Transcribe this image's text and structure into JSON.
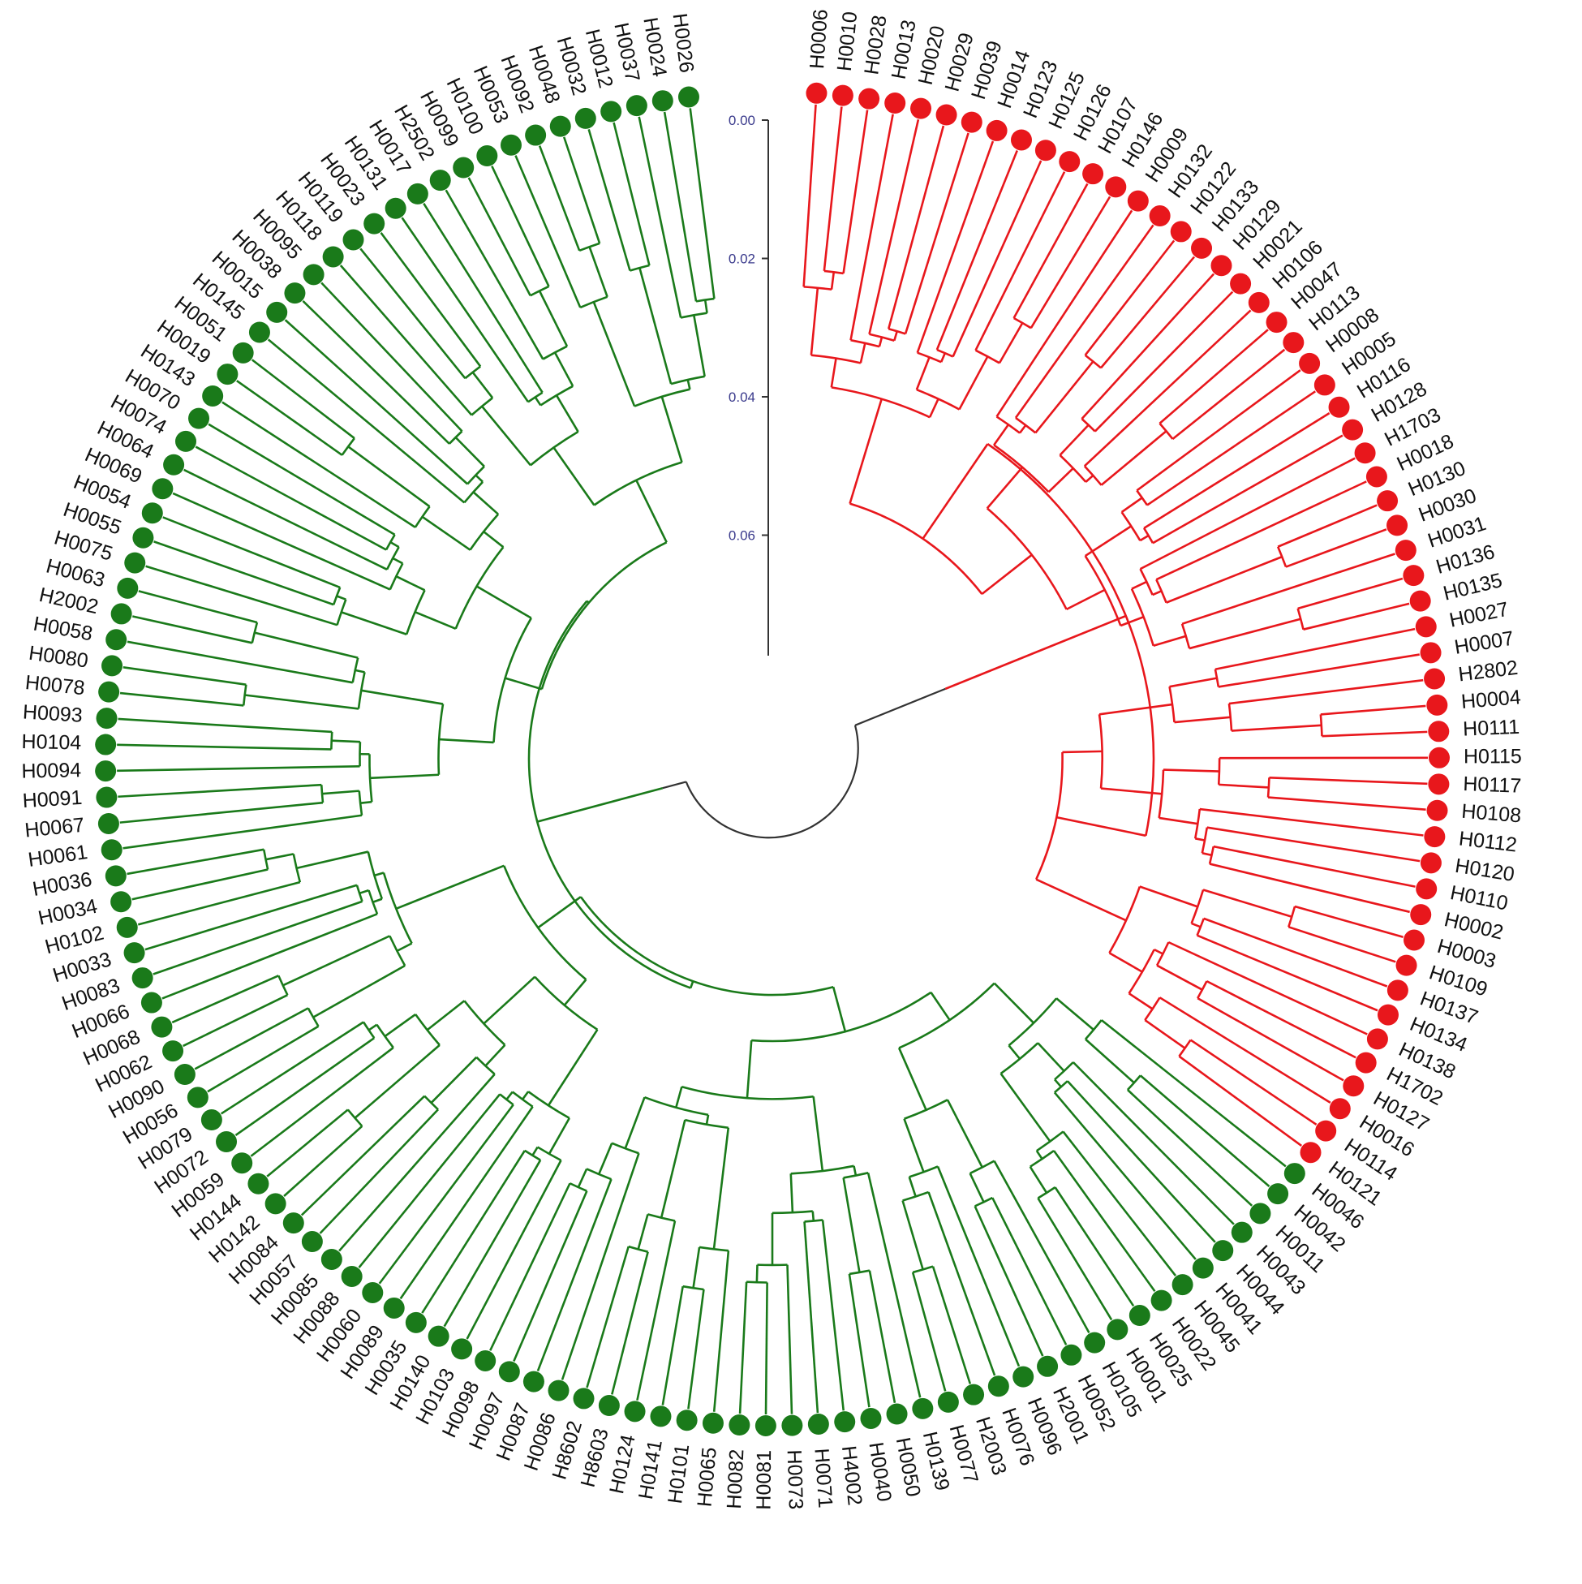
{
  "colors": {
    "group_red": "#e8171c",
    "group_green": "#1a7a1a",
    "axis": "#333333",
    "scale_text": "#3a3a8c",
    "root_arc": "#333333"
  },
  "scale_bar": {
    "ticks": [
      "0.00",
      "0.02",
      "0.04",
      "0.06"
    ]
  },
  "leaves": [
    {
      "id": "H0006",
      "group": "red"
    },
    {
      "id": "H0010",
      "group": "red"
    },
    {
      "id": "H0028",
      "group": "red"
    },
    {
      "id": "H0013",
      "group": "red"
    },
    {
      "id": "H0020",
      "group": "red"
    },
    {
      "id": "H0029",
      "group": "red"
    },
    {
      "id": "H0039",
      "group": "red"
    },
    {
      "id": "H0014",
      "group": "red"
    },
    {
      "id": "H0123",
      "group": "red"
    },
    {
      "id": "H0125",
      "group": "red"
    },
    {
      "id": "H0126",
      "group": "red"
    },
    {
      "id": "H0107",
      "group": "red"
    },
    {
      "id": "H0146",
      "group": "red"
    },
    {
      "id": "H0009",
      "group": "red"
    },
    {
      "id": "H0132",
      "group": "red"
    },
    {
      "id": "H0122",
      "group": "red"
    },
    {
      "id": "H0133",
      "group": "red"
    },
    {
      "id": "H0129",
      "group": "red"
    },
    {
      "id": "H0021",
      "group": "red"
    },
    {
      "id": "H0106",
      "group": "red"
    },
    {
      "id": "H0047",
      "group": "red"
    },
    {
      "id": "H0113",
      "group": "red"
    },
    {
      "id": "H0008",
      "group": "red"
    },
    {
      "id": "H0005",
      "group": "red"
    },
    {
      "id": "H0116",
      "group": "red"
    },
    {
      "id": "H0128",
      "group": "red"
    },
    {
      "id": "H1703",
      "group": "red"
    },
    {
      "id": "H0018",
      "group": "red"
    },
    {
      "id": "H0130",
      "group": "red"
    },
    {
      "id": "H0030",
      "group": "red"
    },
    {
      "id": "H0031",
      "group": "red"
    },
    {
      "id": "H0136",
      "group": "red"
    },
    {
      "id": "H0135",
      "group": "red"
    },
    {
      "id": "H0027",
      "group": "red"
    },
    {
      "id": "H0007",
      "group": "red"
    },
    {
      "id": "H2802",
      "group": "red"
    },
    {
      "id": "H0004",
      "group": "red"
    },
    {
      "id": "H0111",
      "group": "red"
    },
    {
      "id": "H0115",
      "group": "red"
    },
    {
      "id": "H0117",
      "group": "red"
    },
    {
      "id": "H0108",
      "group": "red"
    },
    {
      "id": "H0112",
      "group": "red"
    },
    {
      "id": "H0120",
      "group": "red"
    },
    {
      "id": "H0110",
      "group": "red"
    },
    {
      "id": "H0002",
      "group": "red"
    },
    {
      "id": "H0003",
      "group": "red"
    },
    {
      "id": "H0109",
      "group": "red"
    },
    {
      "id": "H0137",
      "group": "red"
    },
    {
      "id": "H0134",
      "group": "red"
    },
    {
      "id": "H0138",
      "group": "red"
    },
    {
      "id": "H1702",
      "group": "red"
    },
    {
      "id": "H0127",
      "group": "red"
    },
    {
      "id": "H0016",
      "group": "red"
    },
    {
      "id": "H0114",
      "group": "red"
    },
    {
      "id": "H0121",
      "group": "red"
    },
    {
      "id": "H0046",
      "group": "green"
    },
    {
      "id": "H0042",
      "group": "green"
    },
    {
      "id": "H0011",
      "group": "green"
    },
    {
      "id": "H0043",
      "group": "green"
    },
    {
      "id": "H0044",
      "group": "green"
    },
    {
      "id": "H0041",
      "group": "green"
    },
    {
      "id": "H0045",
      "group": "green"
    },
    {
      "id": "H0022",
      "group": "green"
    },
    {
      "id": "H0025",
      "group": "green"
    },
    {
      "id": "H0001",
      "group": "green"
    },
    {
      "id": "H0105",
      "group": "green"
    },
    {
      "id": "H0052",
      "group": "green"
    },
    {
      "id": "H2001",
      "group": "green"
    },
    {
      "id": "H0096",
      "group": "green"
    },
    {
      "id": "H0076",
      "group": "green"
    },
    {
      "id": "H2003",
      "group": "green"
    },
    {
      "id": "H0077",
      "group": "green"
    },
    {
      "id": "H0139",
      "group": "green"
    },
    {
      "id": "H0050",
      "group": "green"
    },
    {
      "id": "H0040",
      "group": "green"
    },
    {
      "id": "H4002",
      "group": "green"
    },
    {
      "id": "H0071",
      "group": "green"
    },
    {
      "id": "H0073",
      "group": "green"
    },
    {
      "id": "H0081",
      "group": "green"
    },
    {
      "id": "H0082",
      "group": "green"
    },
    {
      "id": "H0065",
      "group": "green"
    },
    {
      "id": "H0101",
      "group": "green"
    },
    {
      "id": "H0141",
      "group": "green"
    },
    {
      "id": "H0124",
      "group": "green"
    },
    {
      "id": "H8603",
      "group": "green"
    },
    {
      "id": "H8602",
      "group": "green"
    },
    {
      "id": "H0086",
      "group": "green"
    },
    {
      "id": "H0087",
      "group": "green"
    },
    {
      "id": "H0097",
      "group": "green"
    },
    {
      "id": "H0098",
      "group": "green"
    },
    {
      "id": "H0103",
      "group": "green"
    },
    {
      "id": "H0140",
      "group": "green"
    },
    {
      "id": "H0035",
      "group": "green"
    },
    {
      "id": "H0089",
      "group": "green"
    },
    {
      "id": "H0060",
      "group": "green"
    },
    {
      "id": "H0088",
      "group": "green"
    },
    {
      "id": "H0085",
      "group": "green"
    },
    {
      "id": "H0057",
      "group": "green"
    },
    {
      "id": "H0084",
      "group": "green"
    },
    {
      "id": "H0142",
      "group": "green"
    },
    {
      "id": "H0144",
      "group": "green"
    },
    {
      "id": "H0059",
      "group": "green"
    },
    {
      "id": "H0072",
      "group": "green"
    },
    {
      "id": "H0079",
      "group": "green"
    },
    {
      "id": "H0056",
      "group": "green"
    },
    {
      "id": "H0090",
      "group": "green"
    },
    {
      "id": "H0062",
      "group": "green"
    },
    {
      "id": "H0068",
      "group": "green"
    },
    {
      "id": "H0066",
      "group": "green"
    },
    {
      "id": "H0083",
      "group": "green"
    },
    {
      "id": "H0033",
      "group": "green"
    },
    {
      "id": "H0102",
      "group": "green"
    },
    {
      "id": "H0034",
      "group": "green"
    },
    {
      "id": "H0036",
      "group": "green"
    },
    {
      "id": "H0061",
      "group": "green"
    },
    {
      "id": "H0067",
      "group": "green"
    },
    {
      "id": "H0091",
      "group": "green"
    },
    {
      "id": "H0094",
      "group": "green"
    },
    {
      "id": "H0104",
      "group": "green"
    },
    {
      "id": "H0093",
      "group": "green"
    },
    {
      "id": "H0078",
      "group": "green"
    },
    {
      "id": "H0080",
      "group": "green"
    },
    {
      "id": "H0058",
      "group": "green"
    },
    {
      "id": "H2002",
      "group": "green"
    },
    {
      "id": "H0063",
      "group": "green"
    },
    {
      "id": "H0075",
      "group": "green"
    },
    {
      "id": "H0055",
      "group": "green"
    },
    {
      "id": "H0054",
      "group": "green"
    },
    {
      "id": "H0069",
      "group": "green"
    },
    {
      "id": "H0064",
      "group": "green"
    },
    {
      "id": "H0074",
      "group": "green"
    },
    {
      "id": "H0070",
      "group": "green"
    },
    {
      "id": "H0143",
      "group": "green"
    },
    {
      "id": "H0019",
      "group": "green"
    },
    {
      "id": "H0051",
      "group": "green"
    },
    {
      "id": "H0145",
      "group": "green"
    },
    {
      "id": "H0015",
      "group": "green"
    },
    {
      "id": "H0038",
      "group": "green"
    },
    {
      "id": "H0095",
      "group": "green"
    },
    {
      "id": "H0118",
      "group": "green"
    },
    {
      "id": "H0119",
      "group": "green"
    },
    {
      "id": "H0023",
      "group": "green"
    },
    {
      "id": "H0131",
      "group": "green"
    },
    {
      "id": "H0017",
      "group": "green"
    },
    {
      "id": "H2502",
      "group": "green"
    },
    {
      "id": "H0099",
      "group": "green"
    },
    {
      "id": "H0100",
      "group": "green"
    },
    {
      "id": "H0053",
      "group": "green"
    },
    {
      "id": "H0092",
      "group": "green"
    },
    {
      "id": "H0048",
      "group": "green"
    },
    {
      "id": "H0032",
      "group": "green"
    },
    {
      "id": "H0012",
      "group": "green"
    },
    {
      "id": "H0037",
      "group": "green"
    },
    {
      "id": "H0024",
      "group": "green"
    },
    {
      "id": "H0026",
      "group": "green"
    }
  ]
}
